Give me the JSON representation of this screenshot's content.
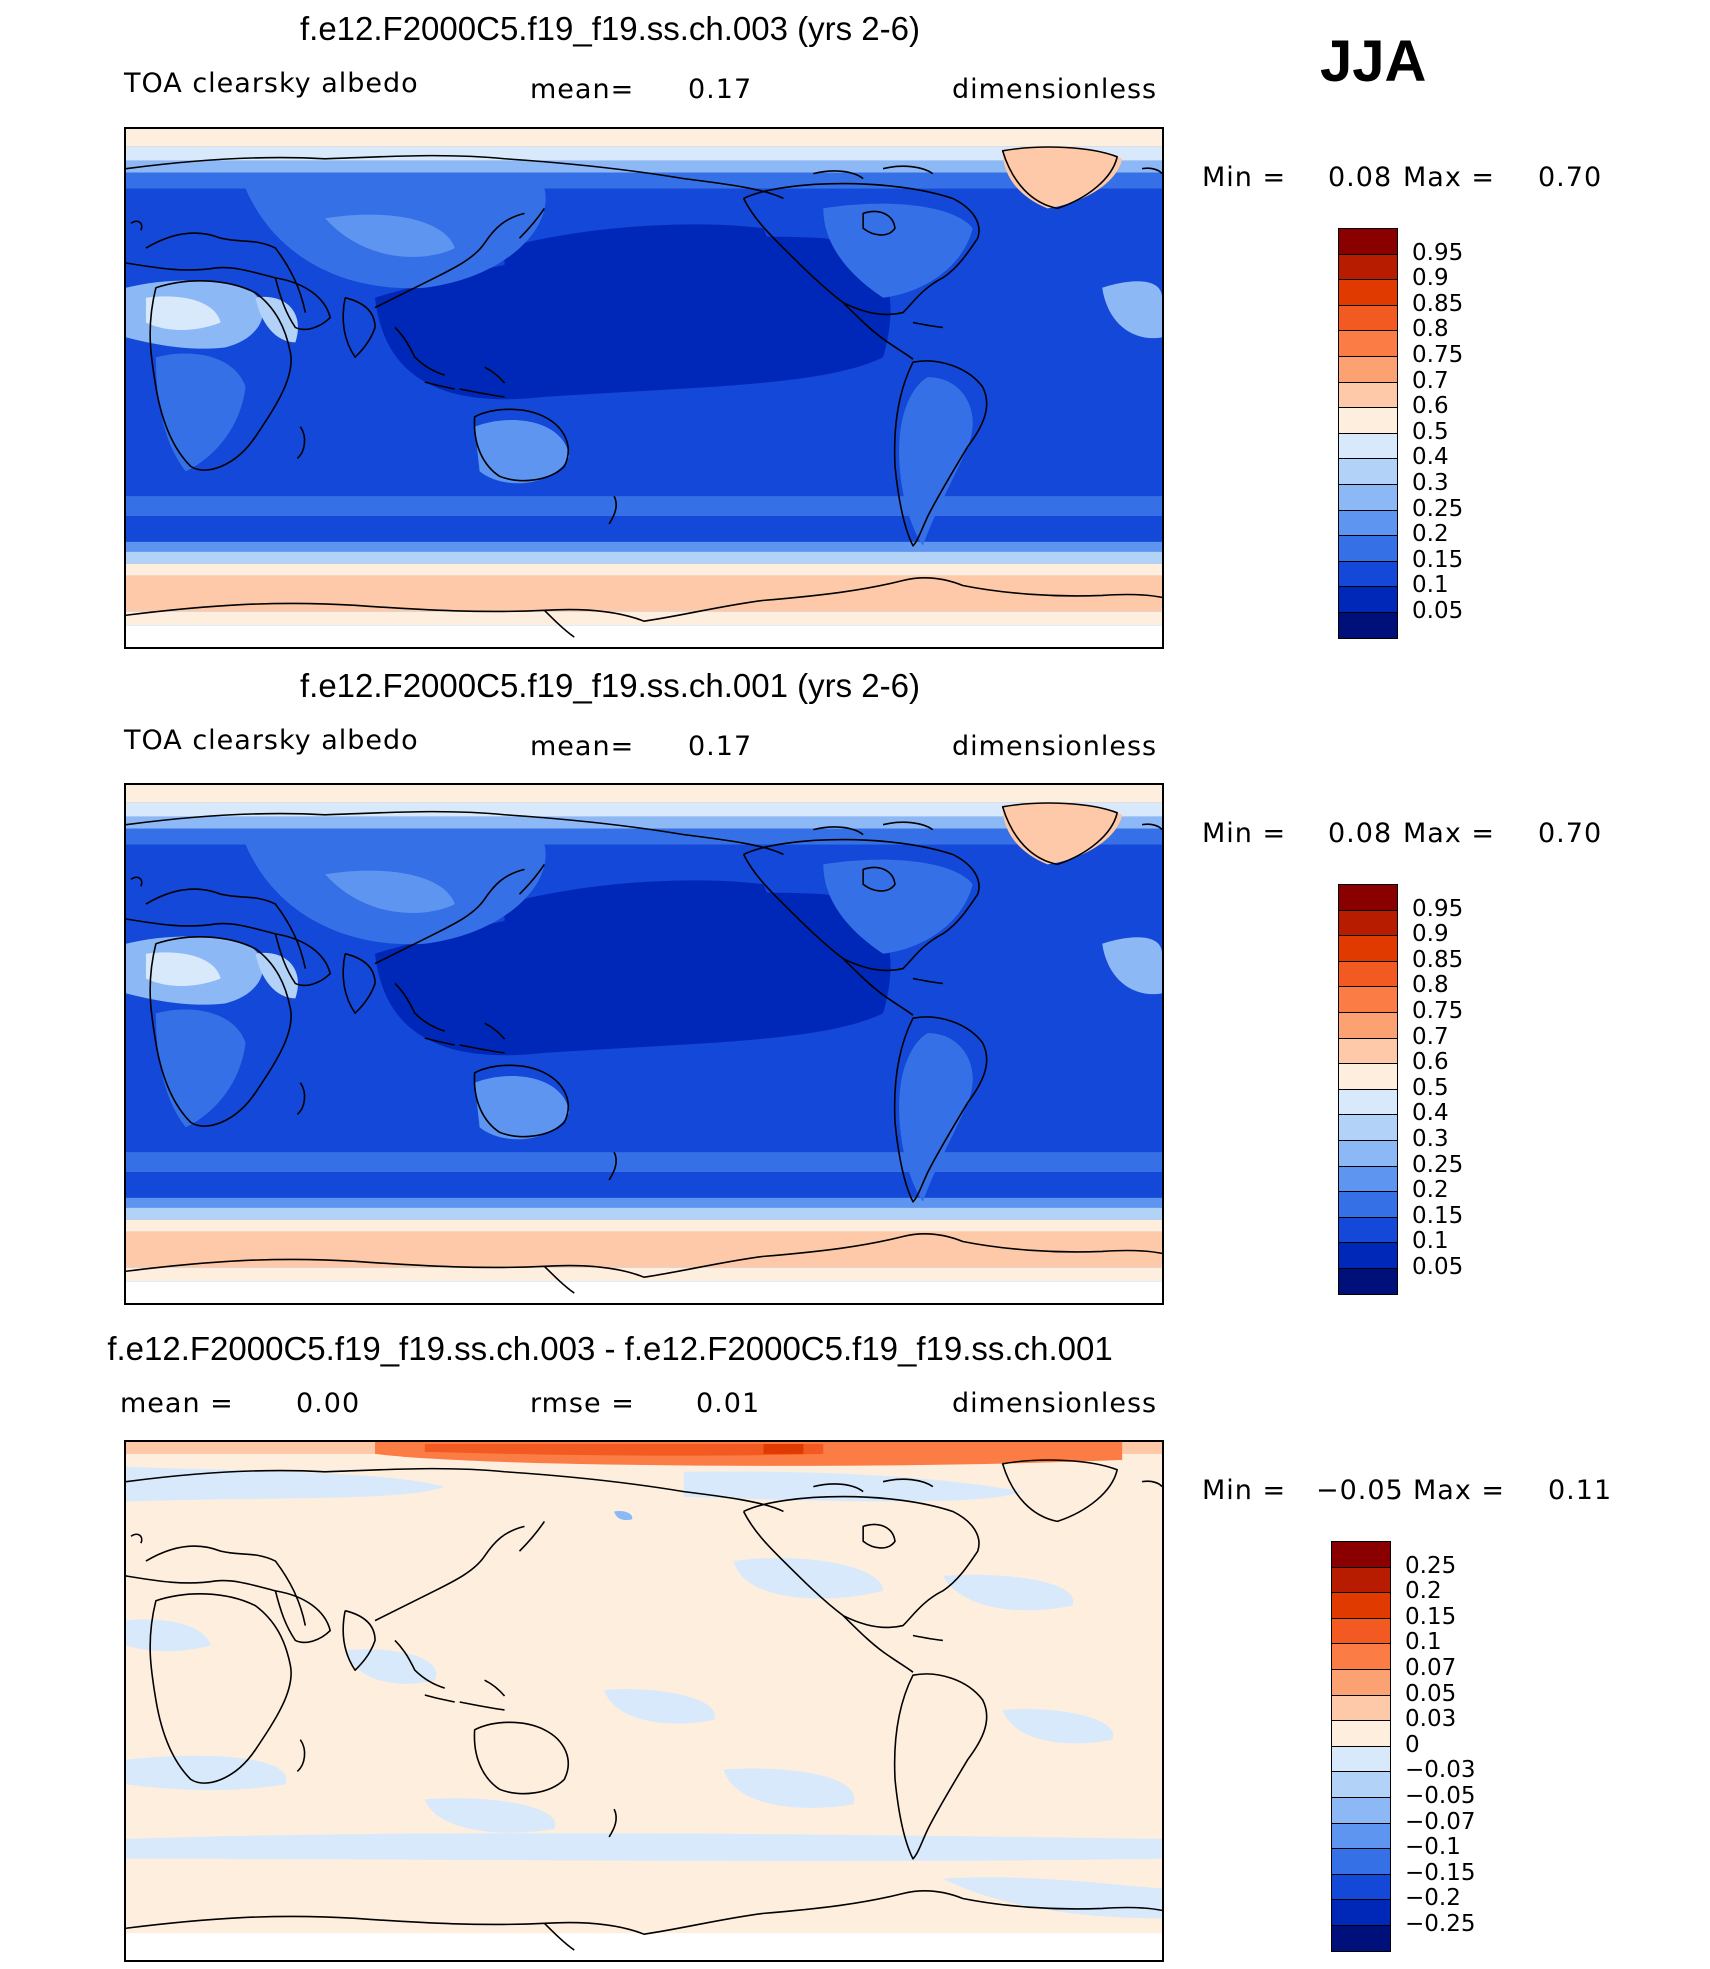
{
  "season": "JJA",
  "scale": {
    "abs": {
      "labels": [
        "0.95",
        "0.9",
        "0.85",
        "0.8",
        "0.75",
        "0.7",
        "0.6",
        "0.5",
        "0.4",
        "0.3",
        "0.25",
        "0.2",
        "0.15",
        "0.1",
        "0.05"
      ],
      "colors": [
        "#8a0000",
        "#b81c00",
        "#e03a00",
        "#f25a22",
        "#fb7d45",
        "#fca172",
        "#fdc9a8",
        "#feeede",
        "#d8e9fb",
        "#b3d2f8",
        "#8db8f6",
        "#5e95f0",
        "#3670e6",
        "#1348d8",
        "#0028b8",
        "#00107a"
      ]
    },
    "diff": {
      "labels": [
        "0.25",
        "0.2",
        "0.15",
        "0.1",
        "0.07",
        "0.05",
        "0.03",
        "0",
        "−0.03",
        "−0.05",
        "−0.07",
        "−0.1",
        "−0.15",
        "−0.2",
        "−0.25"
      ],
      "colors": [
        "#8a0000",
        "#b81c00",
        "#e03a00",
        "#f25a22",
        "#fb7d45",
        "#fca172",
        "#fdc9a8",
        "#feeede",
        "#d8e9fb",
        "#b3d2f8",
        "#8db8f6",
        "#5e95f0",
        "#3670e6",
        "#1348d8",
        "#0028b8",
        "#00107a"
      ]
    }
  },
  "panels": [
    {
      "title": "f.e12.F2000C5.f19_f19.ss.ch.003 (yrs 2-6)",
      "variable": "TOA clearsky albedo",
      "stat_left": "mean=",
      "stat_left_value": "0.17",
      "units": "dimensionless",
      "min_label": "Min =",
      "min_value": "0.08",
      "max_label": "Max =",
      "max_value": "0.70",
      "type": "abs"
    },
    {
      "title": "f.e12.F2000C5.f19_f19.ss.ch.001 (yrs 2-6)",
      "variable": "TOA clearsky albedo",
      "stat_left": "mean=",
      "stat_left_value": "0.17",
      "units": "dimensionless",
      "min_label": "Min =",
      "min_value": "0.08",
      "max_label": "Max =",
      "max_value": "0.70",
      "type": "abs"
    },
    {
      "title": "f.e12.F2000C5.f19_f19.ss.ch.003 - f.e12.F2000C5.f19_f19.ss.ch.001",
      "variable": "mean =",
      "variable_value": "0.00",
      "stat_left": "rmse =",
      "stat_left_value": "0.01",
      "units": "dimensionless",
      "min_label": "Min =",
      "min_value": "−0.05",
      "max_label": "Max =",
      "max_value": "0.11",
      "type": "diff"
    }
  ]
}
